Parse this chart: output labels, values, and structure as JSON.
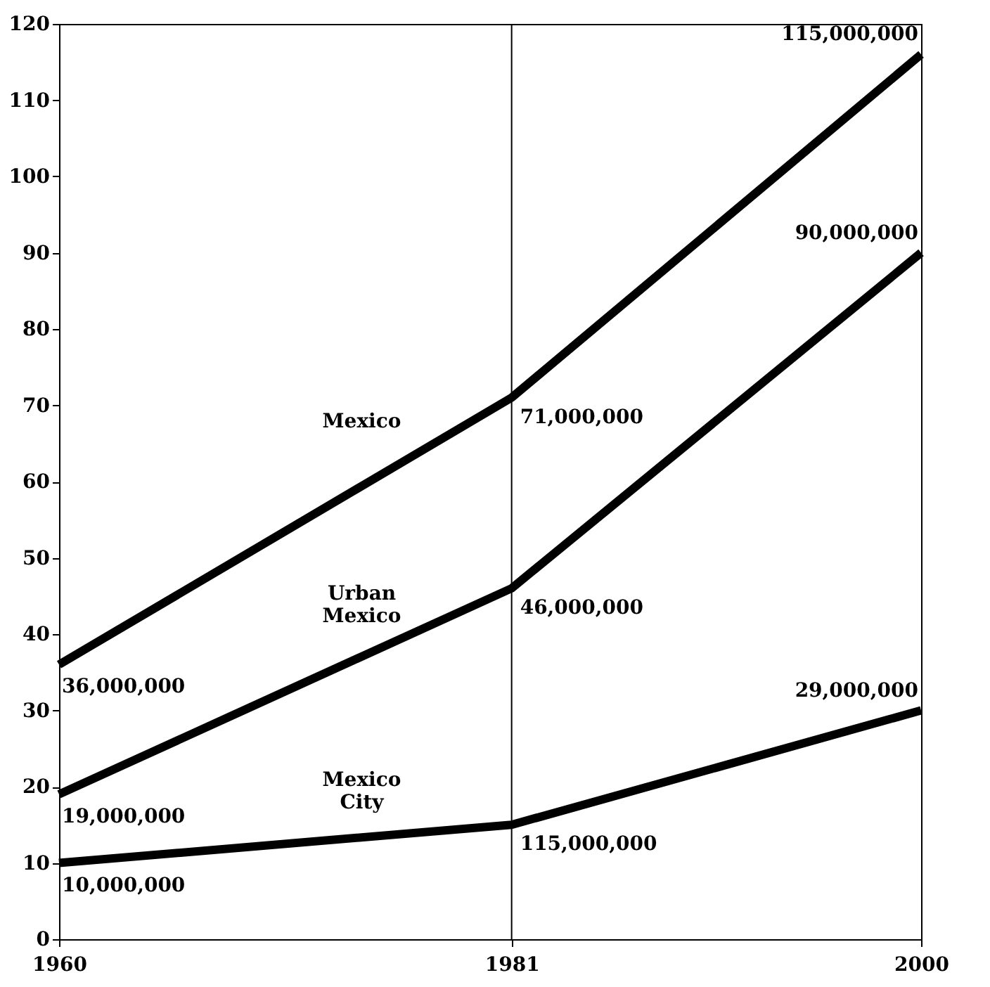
{
  "chart_data": {
    "type": "line",
    "x": [
      1960,
      1981,
      2000
    ],
    "series": [
      {
        "name": "Mexico",
        "color": "#000000",
        "values": [
          36,
          71,
          116
        ]
      },
      {
        "name": "Urban Mexico",
        "color": "#000000",
        "values": [
          19,
          46,
          90
        ]
      },
      {
        "name": "Mexico City",
        "color": "#000000",
        "values": [
          10,
          15,
          30
        ]
      }
    ],
    "annotations": [
      {
        "text": "36,000,000",
        "x": 1960,
        "y": 36
      },
      {
        "text": "71,000,000",
        "x": 1981,
        "y": 71
      },
      {
        "text": "115,000,000",
        "x": 2000,
        "y": 116
      },
      {
        "text": "19,000,000",
        "x": 1960,
        "y": 19
      },
      {
        "text": "46,000,000",
        "x": 1981,
        "y": 46
      },
      {
        "text": "90,000,000",
        "x": 2000,
        "y": 90
      },
      {
        "text": "10,000,000",
        "x": 1960,
        "y": 10
      },
      {
        "text": "115,000,000",
        "x": 1981,
        "y": 15
      },
      {
        "text": "29,000,000",
        "x": 2000,
        "y": 30
      }
    ],
    "xlim": [
      1960,
      2000
    ],
    "xticks": [
      1960,
      1981,
      2000
    ],
    "ylim": [
      0,
      120
    ],
    "yticks": [
      0,
      10,
      20,
      30,
      40,
      50,
      60,
      70,
      80,
      90,
      100,
      110,
      120
    ],
    "ref_lines": [
      {
        "axis": "x",
        "value": 1981,
        "color": "#000000"
      }
    ],
    "grid": false,
    "legend": false,
    "marker": "none",
    "line_style": "solid"
  }
}
